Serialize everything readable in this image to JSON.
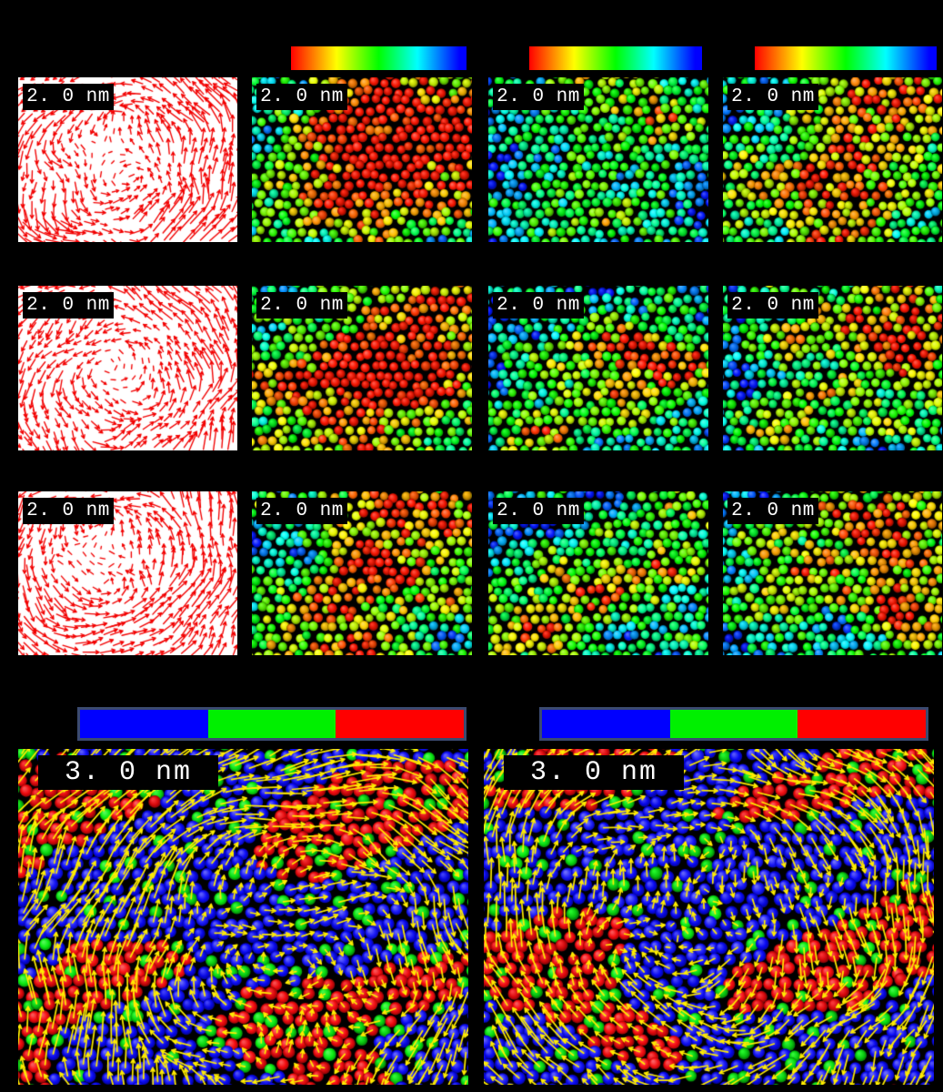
{
  "figure": {
    "background": "#000000",
    "description": "Multi-panel molecular-dynamics visualization: columns of displacement vector fields and color-coded atom maps with scale bars, plus two large atom panels with displacement arrows."
  },
  "colorbars": {
    "rainbow": {
      "name": "displacement-magnitude-colormap",
      "stops": [
        [
          "#ff0000",
          0
        ],
        [
          "#ffff00",
          26
        ],
        [
          "#00ff00",
          50
        ],
        [
          "#00ffff",
          72
        ],
        [
          "#0000ff",
          96
        ]
      ]
    },
    "tricolor": {
      "name": "atom-class-colormap",
      "segments": [
        "#0000ff",
        "#00f000",
        "#ff0000"
      ],
      "border": "#3b4a70"
    }
  },
  "grid": {
    "rows": [
      {
        "cells": [
          {
            "type": "vector-field",
            "label": "2. 0 nm",
            "seed": 101,
            "center": [
              0.42,
              0.5
            ],
            "spin": -1,
            "drift": [
              -0.25,
              0.08
            ]
          },
          {
            "type": "atom-map-jet",
            "label": "2. 0 nm",
            "seed": 201,
            "base": 0.35,
            "spots": [
              [
                0.55,
                0.12,
                0.4,
                0.55
              ],
              [
                0.8,
                0.45,
                0.28,
                0.5
              ],
              [
                0.3,
                0.55,
                0.22,
                0.3
              ],
              [
                0.12,
                0.2,
                0.3,
                -0.3
              ],
              [
                0.45,
                0.9,
                0.2,
                0.25
              ]
            ]
          },
          {
            "type": "atom-map-jet",
            "label": "2. 0 nm",
            "seed": 202,
            "base": 0.24,
            "spots": [
              [
                0.5,
                0.08,
                0.18,
                0.45
              ],
              [
                0.88,
                0.25,
                0.15,
                0.4
              ],
              [
                0.45,
                0.75,
                0.22,
                0.35
              ],
              [
                0.1,
                0.5,
                0.2,
                -0.15
              ]
            ]
          },
          {
            "type": "atom-map-jet",
            "label": "2. 0 nm",
            "seed": 203,
            "base": 0.38,
            "spots": [
              [
                0.78,
                0.15,
                0.3,
                0.55
              ],
              [
                0.3,
                0.62,
                0.25,
                0.35
              ],
              [
                0.6,
                0.85,
                0.2,
                0.3
              ],
              [
                0.12,
                0.18,
                0.25,
                -0.28
              ]
            ]
          }
        ]
      },
      {
        "cells": [
          {
            "type": "vector-field",
            "label": "2. 0 nm",
            "seed": 102,
            "center": [
              0.45,
              0.52
            ],
            "spin": -1,
            "drift": [
              -0.3,
              0.0
            ]
          },
          {
            "type": "atom-map-jet",
            "label": "2. 0 nm",
            "seed": 211,
            "base": 0.45,
            "spots": [
              [
                0.4,
                0.62,
                0.3,
                0.5
              ],
              [
                0.7,
                0.5,
                0.22,
                0.45
              ],
              [
                0.85,
                0.12,
                0.2,
                0.4
              ],
              [
                0.15,
                0.15,
                0.25,
                -0.2
              ]
            ]
          },
          {
            "type": "atom-map-jet",
            "label": "2. 0 nm",
            "seed": 212,
            "base": 0.26,
            "spots": [
              [
                0.55,
                0.45,
                0.22,
                0.55
              ],
              [
                0.9,
                0.5,
                0.15,
                0.45
              ],
              [
                0.25,
                0.9,
                0.2,
                0.3
              ],
              [
                0.15,
                0.25,
                0.25,
                -0.12
              ]
            ]
          },
          {
            "type": "atom-map-jet",
            "label": "2. 0 nm",
            "seed": 213,
            "base": 0.3,
            "spots": [
              [
                0.75,
                0.28,
                0.32,
                0.62
              ],
              [
                0.3,
                0.85,
                0.2,
                0.3
              ],
              [
                0.1,
                0.6,
                0.2,
                -0.15
              ]
            ]
          }
        ]
      },
      {
        "cells": [
          {
            "type": "vector-field",
            "label": "2. 0 nm",
            "seed": 103,
            "center": [
              0.38,
              0.35
            ],
            "spin": -1,
            "drift": [
              -0.35,
              -0.1
            ]
          },
          {
            "type": "atom-map-jet",
            "label": "2. 0 nm",
            "seed": 221,
            "base": 0.42,
            "spots": [
              [
                0.75,
                0.12,
                0.25,
                0.5
              ],
              [
                0.35,
                0.88,
                0.25,
                0.45
              ],
              [
                0.55,
                0.45,
                0.2,
                0.3
              ],
              [
                0.1,
                0.3,
                0.2,
                -0.2
              ]
            ]
          },
          {
            "type": "atom-map-jet",
            "label": "2. 0 nm",
            "seed": 222,
            "base": 0.25,
            "spots": [
              [
                0.18,
                0.82,
                0.2,
                0.55
              ],
              [
                0.65,
                0.5,
                0.22,
                0.5
              ],
              [
                0.88,
                0.15,
                0.12,
                0.35
              ],
              [
                0.4,
                0.15,
                0.2,
                -0.1
              ]
            ]
          },
          {
            "type": "atom-map-jet",
            "label": "2. 0 nm",
            "seed": 223,
            "base": 0.3,
            "spots": [
              [
                0.68,
                0.22,
                0.28,
                0.6
              ],
              [
                0.85,
                0.75,
                0.18,
                0.35
              ],
              [
                0.25,
                0.5,
                0.18,
                0.25
              ],
              [
                0.1,
                0.1,
                0.2,
                -0.15
              ]
            ]
          }
        ]
      }
    ]
  },
  "bottom": {
    "panels": [
      {
        "type": "atom-map-rgb",
        "label": "3. 0 nm",
        "seed": 301,
        "swirl": [
          0.6,
          0.62
        ],
        "spin": 1,
        "drift": [
          0.65,
          -0.5
        ],
        "redThreshold": 0.6,
        "greenProb": 0.16
      },
      {
        "type": "atom-map-rgb",
        "label": "3. 0 nm",
        "seed": 302,
        "swirl": [
          0.45,
          0.45
        ],
        "spin": 1,
        "drift": [
          0.35,
          -0.25
        ],
        "redThreshold": 0.6,
        "greenProb": 0.16
      }
    ]
  },
  "palette": {
    "vector_red": "#f20000",
    "arrow_yellow": "#ffec00",
    "atom_blue": "#1a1ae8",
    "atom_green": "#0ccc22",
    "atom_red": "#ee1414",
    "label_bg": "#000000",
    "label_fg": "#ffffff",
    "vector_panel_bg": "#ffffff",
    "atom_panel_bg": "#000000"
  }
}
